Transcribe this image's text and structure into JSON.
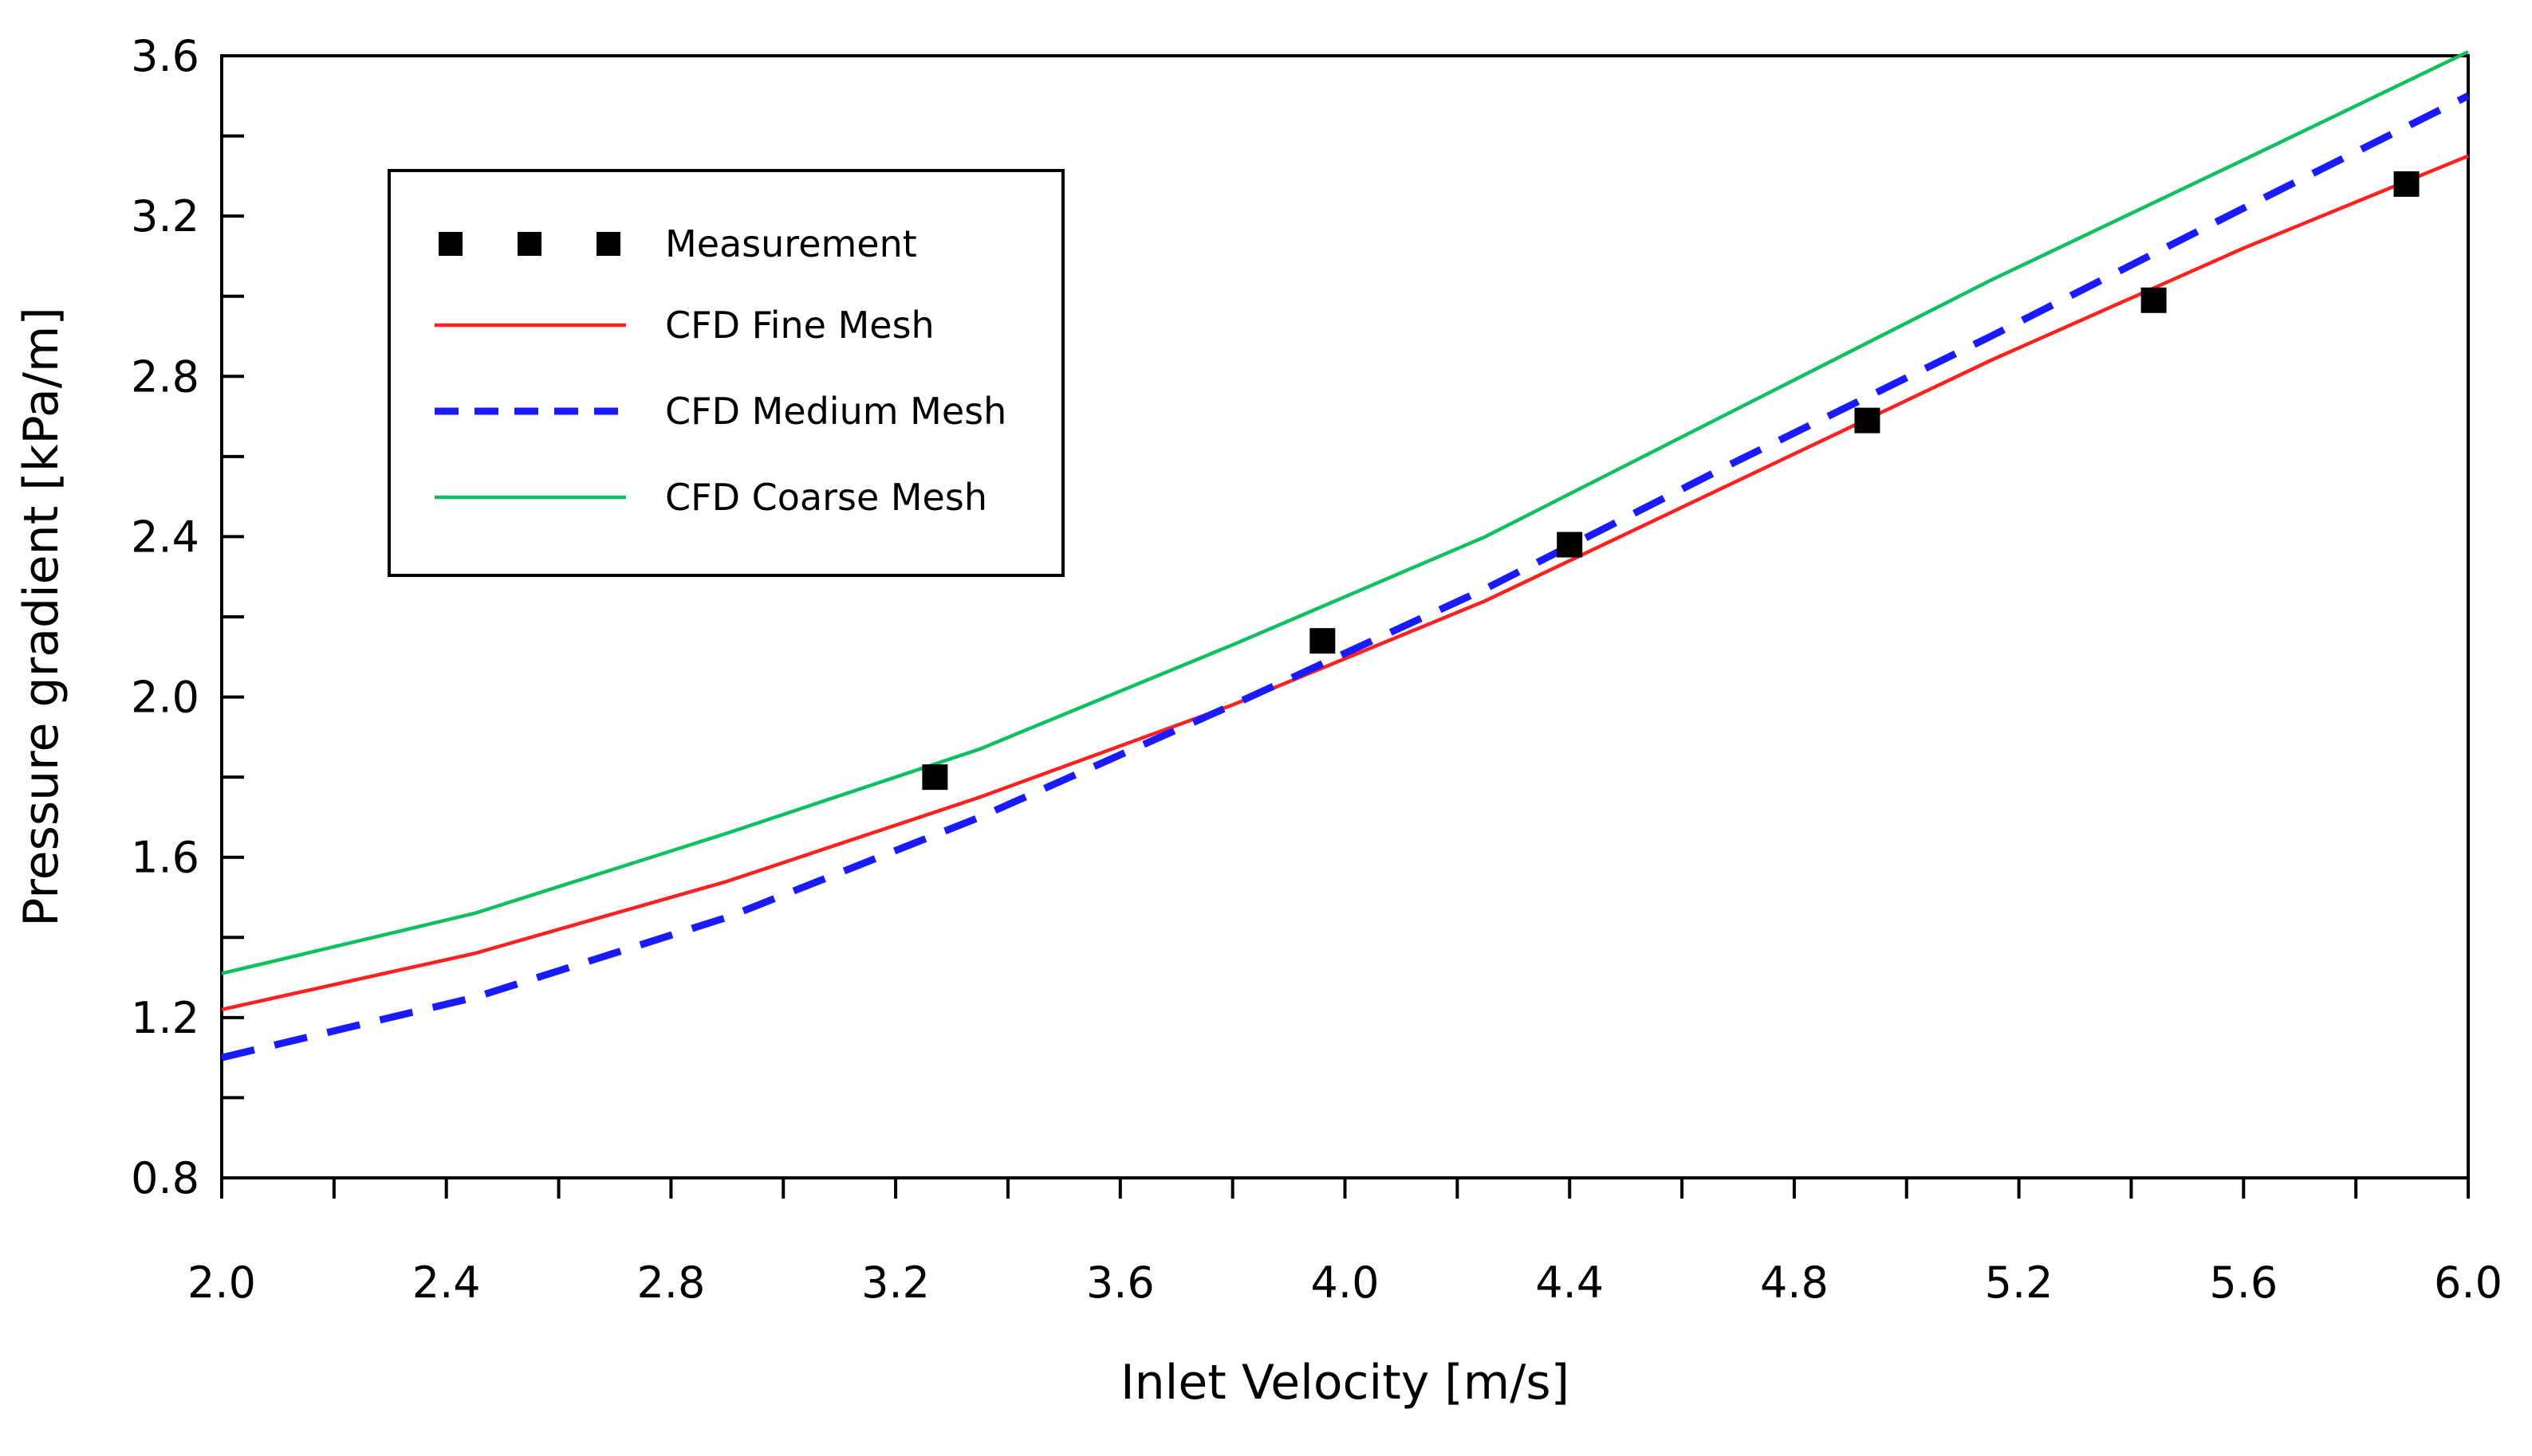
{
  "chart_data": {
    "type": "line",
    "xlabel": "Inlet Velocity [m/s]",
    "ylabel": "Pressure gradient [kPa/m]",
    "xlim": [
      2.0,
      6.0
    ],
    "ylim": [
      0.8,
      3.6
    ],
    "xticks": [
      "2.0",
      "2.4",
      "2.8",
      "3.2",
      "3.6",
      "4.0",
      "4.4",
      "4.8",
      "5.2",
      "5.6",
      "6.0"
    ],
    "yticks": [
      "0.8",
      "1.2",
      "1.6",
      "2.0",
      "2.4",
      "2.8",
      "3.2",
      "3.6"
    ],
    "legend_position": "top-left",
    "grid": false,
    "series": [
      {
        "name": "Measurement",
        "style": "markers",
        "color": "#000000",
        "x": [
          3.27,
          3.96,
          4.4,
          4.93,
          5.44,
          5.89
        ],
        "y": [
          1.8,
          2.14,
          2.38,
          2.69,
          2.99,
          3.28
        ]
      },
      {
        "name": "CFD Fine Mesh",
        "style": "solid",
        "color": "#ff2020",
        "x": [
          2.0,
          2.45,
          2.9,
          3.35,
          3.8,
          4.25,
          4.7,
          5.15,
          5.6,
          6.0
        ],
        "y": [
          1.22,
          1.36,
          1.54,
          1.75,
          1.98,
          2.24,
          2.54,
          2.84,
          3.12,
          3.35
        ]
      },
      {
        "name": "CFD Medium Mesh",
        "style": "dashed",
        "color": "#1a1aff",
        "x": [
          2.0,
          2.45,
          2.9,
          3.35,
          3.8,
          4.25,
          4.7,
          5.15,
          5.6,
          6.0
        ],
        "y": [
          1.1,
          1.25,
          1.45,
          1.7,
          1.98,
          2.27,
          2.59,
          2.9,
          3.22,
          3.5
        ]
      },
      {
        "name": "CFD Coarse Mesh",
        "style": "solid",
        "color": "#10c060",
        "x": [
          2.0,
          2.45,
          2.9,
          3.35,
          3.8,
          4.25,
          4.7,
          5.15,
          5.6,
          6.0
        ],
        "y": [
          1.31,
          1.46,
          1.66,
          1.87,
          2.13,
          2.4,
          2.72,
          3.04,
          3.34,
          3.61
        ]
      }
    ]
  }
}
